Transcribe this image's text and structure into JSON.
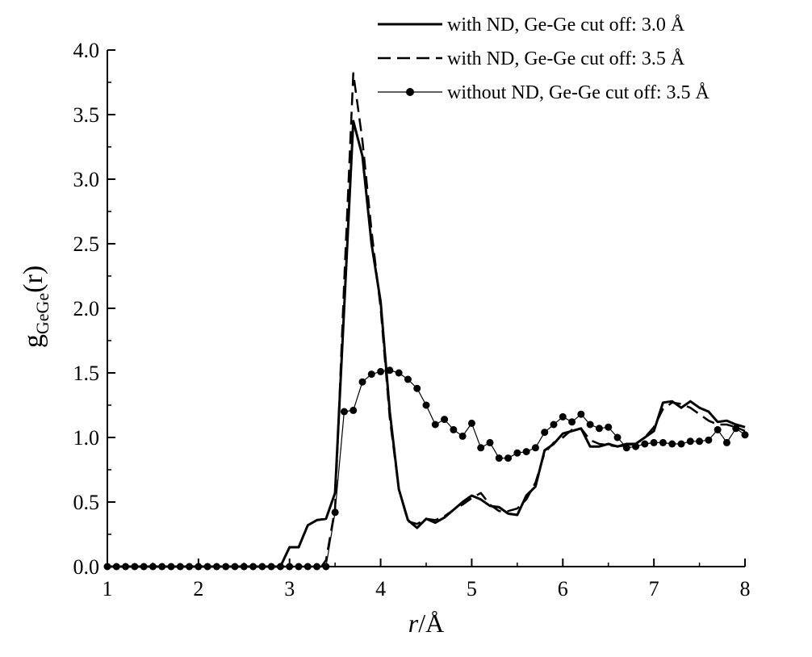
{
  "chart_data": {
    "type": "line",
    "xlabel": {
      "var": "r",
      "unit": "/Å"
    },
    "ylabel": {
      "base": "g",
      "sub": "GeGe",
      "arg": "(r)"
    },
    "xlim": [
      1,
      8
    ],
    "ylim": [
      0,
      4.0
    ],
    "x_ticks": [
      1,
      2,
      3,
      4,
      5,
      6,
      7,
      8
    ],
    "x_tick_labels": [
      "1",
      "2",
      "3",
      "4",
      "5",
      "6",
      "7",
      "8"
    ],
    "y_ticks": [
      0,
      0.5,
      1.0,
      1.5,
      2.0,
      2.5,
      3.0,
      3.5,
      4.0
    ],
    "y_tick_labels": [
      "0.0",
      "0.5",
      "1.0",
      "1.5",
      "2.0",
      "2.5",
      "3.0",
      "3.5",
      "4.0"
    ],
    "grid": false,
    "legend": "top-right",
    "series": [
      {
        "name": "with ND, Ge-Ge cut off: 3.0 Å",
        "style": "solid-thick",
        "x": [
          1.0,
          2.9,
          3.0,
          3.1,
          3.2,
          3.3,
          3.4,
          3.5,
          3.6,
          3.7,
          3.8,
          3.9,
          4.0,
          4.1,
          4.2,
          4.3,
          4.4,
          4.5,
          4.6,
          4.7,
          4.8,
          4.9,
          5.0,
          5.1,
          5.2,
          5.3,
          5.4,
          5.5,
          5.6,
          5.7,
          5.8,
          5.9,
          6.0,
          6.1,
          6.2,
          6.3,
          6.4,
          6.5,
          6.6,
          6.7,
          6.8,
          6.9,
          7.0,
          7.1,
          7.2,
          7.3,
          7.4,
          7.5,
          7.6,
          7.7,
          7.8,
          7.9,
          8.0
        ],
        "y": [
          0.0,
          0.0,
          0.15,
          0.15,
          0.32,
          0.36,
          0.37,
          0.57,
          2.0,
          3.45,
          3.18,
          2.5,
          2.05,
          1.2,
          0.6,
          0.36,
          0.3,
          0.37,
          0.34,
          0.38,
          0.44,
          0.5,
          0.55,
          0.52,
          0.47,
          0.46,
          0.41,
          0.4,
          0.55,
          0.62,
          0.9,
          0.95,
          1.03,
          1.05,
          1.07,
          0.93,
          0.93,
          0.95,
          0.93,
          0.95,
          0.95,
          1.0,
          1.05,
          1.27,
          1.28,
          1.23,
          1.28,
          1.23,
          1.2,
          1.12,
          1.13,
          1.1,
          1.08
        ]
      },
      {
        "name": "with ND, Ge-Ge cut off: 3.5 Å",
        "style": "dashed",
        "x": [
          1.0,
          3.35,
          3.4,
          3.45,
          3.5,
          3.6,
          3.7,
          3.8,
          3.9,
          4.0,
          4.1,
          4.2,
          4.3,
          4.4,
          4.5,
          4.6,
          4.7,
          4.8,
          4.9,
          5.0,
          5.1,
          5.2,
          5.3,
          5.4,
          5.5,
          5.6,
          5.7,
          5.8,
          5.9,
          6.0,
          6.1,
          6.2,
          6.3,
          6.4,
          6.5,
          6.6,
          6.7,
          6.8,
          6.9,
          7.0,
          7.1,
          7.2,
          7.3,
          7.4,
          7.5,
          7.6,
          7.7,
          7.8,
          7.9,
          8.0
        ],
        "y": [
          0.0,
          0.0,
          0.05,
          0.25,
          0.45,
          2.2,
          3.82,
          3.3,
          2.6,
          2.0,
          1.15,
          0.6,
          0.35,
          0.33,
          0.37,
          0.36,
          0.39,
          0.44,
          0.48,
          0.53,
          0.57,
          0.48,
          0.43,
          0.43,
          0.45,
          0.52,
          0.65,
          0.88,
          0.96,
          1.0,
          1.06,
          1.07,
          0.98,
          0.95,
          0.94,
          0.93,
          0.94,
          0.95,
          1.0,
          1.08,
          1.22,
          1.27,
          1.26,
          1.23,
          1.18,
          1.13,
          1.1,
          1.1,
          1.08,
          1.05
        ]
      },
      {
        "name": "without ND, Ge-Ge cut off: 3.5 Å",
        "style": "thin-dots",
        "x": [
          1.0,
          1.1,
          1.2,
          1.3,
          1.4,
          1.5,
          1.6,
          1.7,
          1.8,
          1.9,
          2.0,
          2.1,
          2.2,
          2.3,
          2.4,
          2.5,
          2.6,
          2.7,
          2.8,
          2.9,
          3.0,
          3.1,
          3.2,
          3.3,
          3.4,
          3.5,
          3.6,
          3.7,
          3.8,
          3.9,
          4.0,
          4.1,
          4.2,
          4.3,
          4.4,
          4.5,
          4.6,
          4.7,
          4.8,
          4.9,
          5.0,
          5.1,
          5.2,
          5.3,
          5.4,
          5.5,
          5.6,
          5.7,
          5.8,
          5.9,
          6.0,
          6.1,
          6.2,
          6.3,
          6.4,
          6.5,
          6.6,
          6.7,
          6.8,
          6.9,
          7.0,
          7.1,
          7.2,
          7.3,
          7.4,
          7.5,
          7.6,
          7.7,
          7.8,
          7.9,
          8.0
        ],
        "y": [
          0.0,
          0.0,
          0.0,
          0.0,
          0.0,
          0.0,
          0.0,
          0.0,
          0.0,
          0.0,
          0.0,
          0.0,
          0.0,
          0.0,
          0.0,
          0.0,
          0.0,
          0.0,
          0.0,
          0.0,
          0.0,
          0.0,
          0.0,
          0.0,
          0.0,
          0.42,
          1.2,
          1.21,
          1.43,
          1.49,
          1.51,
          1.52,
          1.5,
          1.45,
          1.38,
          1.25,
          1.1,
          1.14,
          1.06,
          1.01,
          1.11,
          0.92,
          0.96,
          0.84,
          0.84,
          0.88,
          0.89,
          0.92,
          1.04,
          1.1,
          1.16,
          1.12,
          1.18,
          1.1,
          1.07,
          1.08,
          1.0,
          0.92,
          0.93,
          0.95,
          0.96,
          0.96,
          0.95,
          0.95,
          0.97,
          0.97,
          0.98,
          1.06,
          0.96,
          1.07,
          1.02
        ]
      }
    ]
  }
}
